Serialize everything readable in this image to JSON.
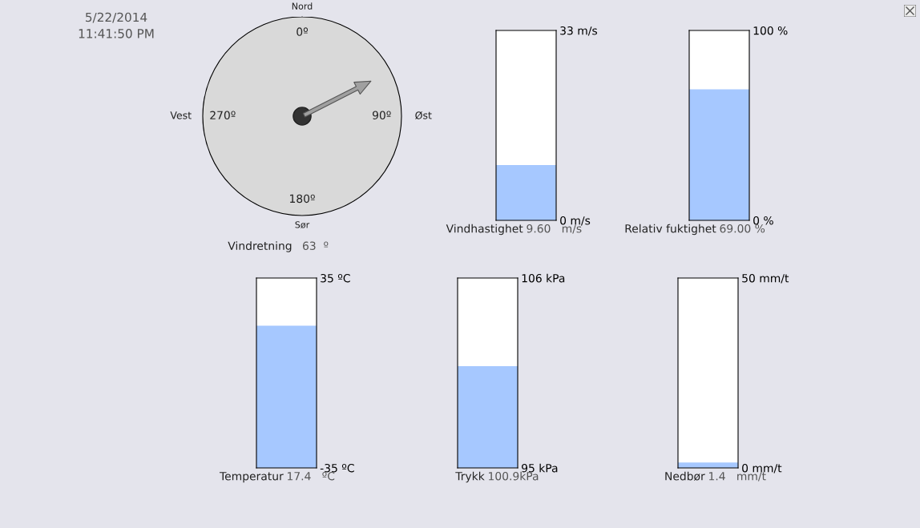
{
  "chart_data": [
    {
      "type": "other",
      "title": "5/22/2014",
      "subtitle": "11:41:50 PM"
    },
    {
      "type": "other",
      "annotations": [
        "Nord",
        "Øst",
        "Sør",
        "Vest",
        "0º",
        "90º",
        "180º",
        "270º"
      ],
      "values": [
        63
      ],
      "xlabel": "Vindretning",
      "value_labels": [
        "63  º"
      ],
      "color": "#a0a0a0"
    },
    {
      "type": "bar",
      "categories": [
        null
      ],
      "values": [
        9.6
      ],
      "color": "#a6c8ff",
      "ylim": [
        0,
        33
      ],
      "yticks": [
        {
          "value": 0,
          "label": "0 m/s"
        },
        {
          "value": 33,
          "label": "33 m/s"
        }
      ],
      "xlabel": "Vindhastighet",
      "value_labels": [
        "9.60   m/s"
      ],
      "tick_labels": "y"
    },
    {
      "type": "bar",
      "categories": [
        null
      ],
      "values": [
        69.0
      ],
      "color": "#a6c8ff",
      "ylim": [
        0,
        100
      ],
      "yticks": [
        {
          "value": 0,
          "label": "0 %"
        },
        {
          "value": 100,
          "label": "100 %"
        }
      ],
      "xlabel": "Relativ fuktighet",
      "value_labels": [
        "69.00 %"
      ],
      "tick_labels": "y"
    },
    {
      "type": "bar",
      "categories": [
        null
      ],
      "base": [
        -35
      ],
      "values": [
        52.4
      ],
      "color": "#a6c8ff",
      "ylim": [
        -35,
        35
      ],
      "yticks": [
        {
          "value": -35,
          "label": "-35 ºC"
        },
        {
          "value": 35,
          "label": "35 ºC"
        }
      ],
      "xlabel": "Temperatur",
      "value_labels": [
        "17.4   ºC"
      ],
      "tick_labels": "y"
    },
    {
      "type": "bar",
      "categories": [
        null
      ],
      "base": [
        95
      ],
      "values": [
        5.9
      ],
      "color": "#a6c8ff",
      "ylim": [
        95,
        106
      ],
      "yticks": [
        {
          "value": 95,
          "label": "95 kPa"
        },
        {
          "value": 106,
          "label": "106 kPa"
        }
      ],
      "xlabel": "Trykk",
      "value_labels": [
        "100.9kPa"
      ],
      "tick_labels": "y"
    },
    {
      "type": "bar",
      "categories": [
        null
      ],
      "values": [
        1.4
      ],
      "color": "#a6c8ff",
      "ylim": [
        0,
        50
      ],
      "yticks": [
        {
          "value": 0,
          "label": "0 mm/t"
        },
        {
          "value": 50,
          "label": "50 mm/t"
        }
      ],
      "xlabel": "Nedbør",
      "value_labels": [
        "1.4   mm/t"
      ],
      "tick_labels": "y"
    }
  ]
}
